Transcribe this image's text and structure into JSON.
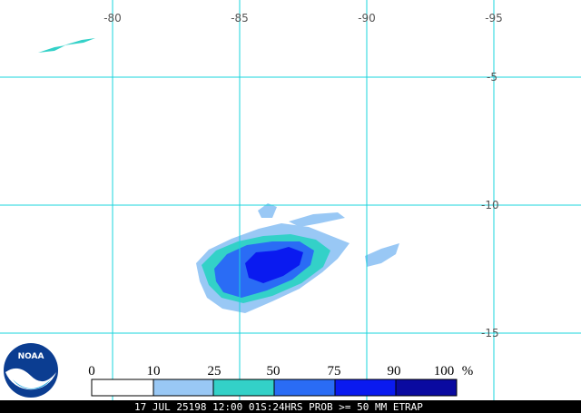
{
  "map": {
    "longitude_labels": [
      -80,
      -85,
      -90,
      -95
    ],
    "latitude_labels": [
      -5,
      -10,
      -15
    ],
    "logo": "NOAA",
    "legend": {
      "labels": [
        0,
        10,
        25,
        50,
        75,
        90,
        100
      ],
      "unit": "%",
      "colors": [
        "#ffffff",
        "#99c8f5",
        "#33d1c8",
        "#2a6cf5",
        "#0a1af0",
        "#0a0aa0"
      ]
    },
    "caption": "17 JUL 25198 12:00 01S:24HRS PROB >= 50 MM ETRAP"
  }
}
